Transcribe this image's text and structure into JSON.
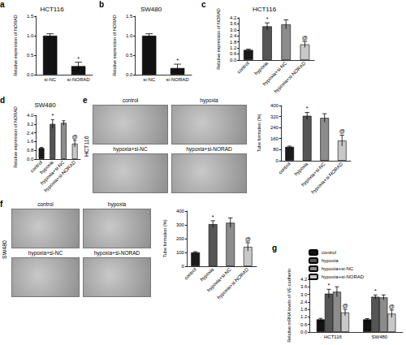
{
  "chart_data": [
    {
      "panel": "a",
      "type": "bar",
      "title": "HCT116",
      "categories": [
        "si-NC",
        "si-NORAD"
      ],
      "values": [
        1.0,
        0.22
      ],
      "errors": [
        0.05,
        0.1
      ],
      "marks": [
        null,
        "*"
      ],
      "colors": [
        "#111111",
        "#111111"
      ],
      "ylabel": "Relative expression of NORAD",
      "ylim": [
        0,
        1.5
      ],
      "yticks": [
        {
          "value": 0,
          "label": "0.0"
        },
        0.5,
        {
          "value": 1,
          "label": "1.0"
        },
        1.5
      ],
      "grid": false
    },
    {
      "panel": "b",
      "type": "bar",
      "title": "SW480",
      "categories": [
        "si-NC",
        "si-NORAD"
      ],
      "values": [
        1.0,
        0.17
      ],
      "errors": [
        0.05,
        0.1
      ],
      "marks": [
        null,
        "*"
      ],
      "colors": [
        "#111111",
        "#111111"
      ],
      "ylabel": "Relative expression of NORAD",
      "ylim": [
        0,
        1.5
      ],
      "yticks": [
        {
          "value": 0,
          "label": "0.0"
        },
        0.5,
        {
          "value": 1,
          "label": "1.0"
        },
        1.5
      ],
      "grid": false
    },
    {
      "panel": "c",
      "type": "bar",
      "title": "HCT116",
      "categories": [
        "control",
        "hypoxia",
        "hypoxia+si-NC",
        "hypoxia+si-NORAD"
      ],
      "values": [
        1.0,
        3.35,
        3.55,
        1.55
      ],
      "errors": [
        0.08,
        0.35,
        0.45,
        0.3
      ],
      "marks": [
        null,
        "*",
        null,
        "@"
      ],
      "colors": [
        "#1a1a1a",
        "#555555",
        "#8c8c8c",
        "#c8c8c8"
      ],
      "ylabel": "Relative expression of NORAD",
      "ylim": [
        0,
        4.2
      ],
      "yticks": [
        {
          "value": 0,
          "label": "0.0"
        },
        0.6,
        1.2,
        1.8,
        2.4,
        {
          "value": 3,
          "label": "3.0"
        },
        3.6,
        4.2
      ],
      "grid": false
    },
    {
      "panel": "d",
      "type": "bar",
      "title": "SW480",
      "categories": [
        "control",
        "hypoxia",
        "hypoxia+si-NC",
        "hypoxia+si-NORAD"
      ],
      "values": [
        1.0,
        3.2,
        3.3,
        1.4
      ],
      "errors": [
        0.06,
        0.4,
        0.2,
        0.3
      ],
      "marks": [
        null,
        "*",
        null,
        "@"
      ],
      "colors": [
        "#1a1a1a",
        "#555555",
        "#8c8c8c",
        "#c8c8c8"
      ],
      "ylabel": "Relative expression of NORAD",
      "ylim": [
        0,
        4.0
      ],
      "yticks": [
        {
          "value": 0,
          "label": "0.0"
        },
        0.8,
        1.6,
        2.4,
        3.2,
        {
          "value": 4,
          "label": "4.0"
        }
      ],
      "grid": false
    },
    {
      "type": "bar",
      "categories": [
        "control",
        "hypoxia",
        "hypoxia+si-NC",
        "hypoxia+si-NORAD"
      ],
      "values": [
        100,
        325,
        310,
        145
      ],
      "errors": [
        5,
        25,
        30,
        40
      ],
      "marks": [
        null,
        "*",
        null,
        "@"
      ],
      "colors": [
        "#1a1a1a",
        "#555555",
        "#8c8c8c",
        "#c8c8c8"
      ],
      "ylabel": "Tube formation (%)",
      "ylim": [
        0,
        400
      ],
      "yticks": [
        0,
        80,
        160,
        240,
        320,
        400
      ],
      "grid": false
    },
    {
      "type": "bar",
      "categories": [
        "control",
        "hypoxia",
        "hypoxia+si-NC",
        "hypoxia+si-NORAD"
      ],
      "values": [
        100,
        305,
        315,
        140
      ],
      "errors": [
        5,
        25,
        35,
        30
      ],
      "marks": [
        null,
        "*",
        null,
        "@"
      ],
      "colors": [
        "#1a1a1a",
        "#555555",
        "#8c8c8c",
        "#c8c8c8"
      ],
      "ylabel": "Tube formation (%)",
      "ylim": [
        0,
        400
      ],
      "yticks": [
        0,
        100,
        200,
        300,
        400
      ],
      "grid": false
    },
    {
      "panel": "g",
      "type": "bar",
      "categories": [
        "HCT116",
        "SW480"
      ],
      "ylabel": "Relative mRNA levels of VE-cadherin",
      "series": [
        {
          "name": "control",
          "color": "#111111",
          "values": [
            1.0,
            1.0
          ],
          "errors": [
            0.08,
            0.06
          ],
          "marks": [
            null,
            null
          ]
        },
        {
          "name": "hypoxia",
          "color": "#555555",
          "values": [
            3.05,
            2.8
          ],
          "errors": [
            0.35,
            0.15
          ],
          "marks": [
            "*",
            "*"
          ]
        },
        {
          "name": "hypoxia+si-NC",
          "color": "#8c8c8c",
          "values": [
            3.2,
            2.75
          ],
          "errors": [
            0.4,
            0.2
          ],
          "marks": [
            null,
            null
          ]
        },
        {
          "name": "hypoxia+si-NORAD",
          "color": "#c8c8c8",
          "values": [
            1.55,
            1.45
          ],
          "errors": [
            0.25,
            0.3
          ],
          "marks": [
            "@",
            "@"
          ]
        }
      ],
      "legend": "top-left",
      "ylim": [
        0,
        4.2
      ],
      "yticks": [
        {
          "value": 0,
          "label": "0.0"
        },
        0.6,
        1.2,
        1.8,
        2.4,
        {
          "value": 3,
          "label": "3.0"
        },
        3.6,
        4.2
      ],
      "grid": false
    }
  ],
  "micrographs": [
    {
      "panel": "e",
      "cell_line": "HCT116",
      "labels": [
        "control",
        "hypoxia",
        "hypoxia+si-NC",
        "hypoxia+si-NORAD"
      ]
    },
    {
      "panel": "f",
      "cell_line": "SW480",
      "labels": [
        "control",
        "hypoxia",
        "hypoxia+si-NC",
        "hypoxia+si-NORAD"
      ]
    }
  ]
}
